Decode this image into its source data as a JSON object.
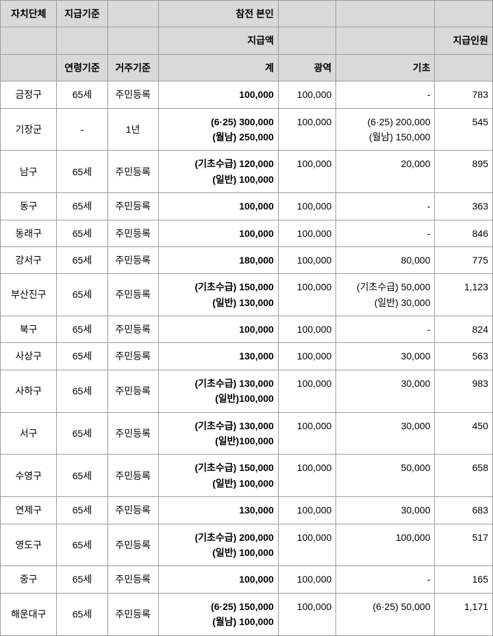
{
  "table": {
    "header": {
      "r1": {
        "c1": "자치단체",
        "c2": "지급기준",
        "c3": "",
        "c4": "참전 본인",
        "c5": "",
        "c6": "",
        "c7": ""
      },
      "r2": {
        "c1": "",
        "c2": "",
        "c3": "",
        "c4": "지급액",
        "c5": "",
        "c6": "",
        "c7": "지급인원"
      },
      "r3": {
        "c1": "",
        "c2": "연령기준",
        "c3": "거주기준",
        "c4": "계",
        "c5": "광역",
        "c6": "기초",
        "c7": ""
      }
    },
    "rows": [
      {
        "district": "금정구",
        "age": "65세",
        "resid": "주민등록",
        "total": "100,000",
        "wide": "100,000",
        "basic": "-",
        "count": "783"
      },
      {
        "district": "기장군",
        "age": "-",
        "resid": "1년",
        "total": "(6·25) 300,000\n(월남) 250,000",
        "wide": "100,000",
        "basic": "(6·25) 200,000\n(월남) 150,000",
        "count": "545"
      },
      {
        "district": "남구",
        "age": "65세",
        "resid": "주민등록",
        "total": "(기초수급) 120,000\n(일반) 100,000",
        "wide": "100,000",
        "basic": "20,000",
        "count": "895"
      },
      {
        "district": "동구",
        "age": "65세",
        "resid": "주민등록",
        "total": "100,000",
        "wide": "100,000",
        "basic": "-",
        "count": "363"
      },
      {
        "district": "동래구",
        "age": "65세",
        "resid": "주민등록",
        "total": "100,000",
        "wide": "100,000",
        "basic": "-",
        "count": "846"
      },
      {
        "district": "강서구",
        "age": "65세",
        "resid": "주민등록",
        "total": "180,000",
        "wide": "100,000",
        "basic": "80,000",
        "count": "775"
      },
      {
        "district": "부산진구",
        "age": "65세",
        "resid": "주민등록",
        "total": "(기초수급) 150,000\n(일반) 130,000",
        "wide": "100,000",
        "basic": "(기초수급) 50,000\n(일반) 30,000",
        "count": "1,123"
      },
      {
        "district": "북구",
        "age": "65세",
        "resid": "주민등록",
        "total": "100,000",
        "wide": "100,000",
        "basic": "-",
        "count": "824"
      },
      {
        "district": "사상구",
        "age": "65세",
        "resid": "주민등록",
        "total": "130,000",
        "wide": "100,000",
        "basic": "30,000",
        "count": "563"
      },
      {
        "district": "사하구",
        "age": "65세",
        "resid": "주민등록",
        "total": "(기초수급) 130,000\n(일반)100,000",
        "wide": "100,000",
        "basic": "30,000",
        "count": "983"
      },
      {
        "district": "서구",
        "age": "65세",
        "resid": "주민등록",
        "total": "(기초수급) 130,000\n(일반)100,000",
        "wide": "100,000",
        "basic": "30,000",
        "count": "450"
      },
      {
        "district": "수영구",
        "age": "65세",
        "resid": "주민등록",
        "total": "(기초수급) 150,000\n(일반) 100,000",
        "wide": "100,000",
        "basic": "50,000",
        "count": "658"
      },
      {
        "district": "연제구",
        "age": "65세",
        "resid": "주민등록",
        "total": "130,000",
        "wide": "100,000",
        "basic": "30,000",
        "count": "683"
      },
      {
        "district": "영도구",
        "age": "65세",
        "resid": "주민등록",
        "total": "(기초수급) 200,000\n(일반) 100,000",
        "wide": "100,000",
        "basic": "100,000",
        "count": "517"
      },
      {
        "district": "중구",
        "age": "65세",
        "resid": "주민등록",
        "total": "100,000",
        "wide": "100,000",
        "basic": "-",
        "count": "165"
      },
      {
        "district": "해운대구",
        "age": "65세",
        "resid": "주민등록",
        "total": "(6·25) 150,000\n(월남) 100,000",
        "wide": "100,000",
        "basic": "(6·25) 50,000",
        "count": "1,171"
      }
    ]
  }
}
